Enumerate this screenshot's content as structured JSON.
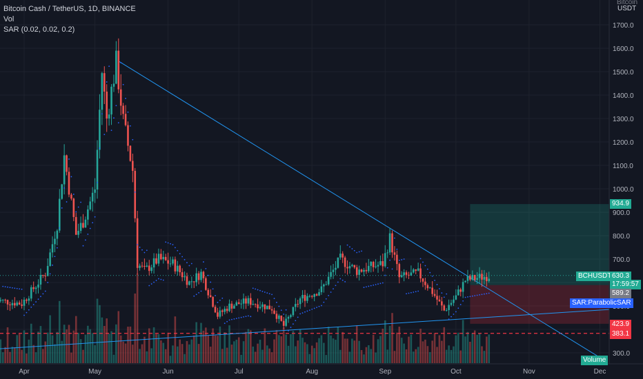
{
  "header": {
    "symbol_line": "Bitcoin Cash / TetherUS, 1D, BINANCE",
    "indicator_vol": "Vol",
    "indicator_sar": "SAR (0.02, 0.02, 0.2)"
  },
  "axis": {
    "currency_top": "Bitcoin",
    "currency": "USDT"
  },
  "labels": {
    "take_profit": "934.9",
    "symbol": "BCHUSDT",
    "last_price": "630.3",
    "countdown": "17:59:57",
    "entry": "589.2",
    "sar_tag": "SAR:ParabolicSAR",
    "stop_loss": "423.9",
    "support": "383.1",
    "volume_tag": "Volume"
  },
  "colors": {
    "background": "#131722",
    "up": "#26a69a",
    "down": "#ef5350",
    "trendline": "#2196f3",
    "sar_dots": "#2962ff",
    "support_line": "#f23645"
  },
  "chart_data": {
    "type": "candlestick",
    "ylim": [
      280,
      1790
    ],
    "y_ticks": [
      300,
      400,
      500,
      600,
      700,
      800,
      900,
      1000,
      1100,
      1200,
      1300,
      1400,
      1500,
      1600,
      1700
    ],
    "x_ticks": [
      "Apr",
      "May",
      "Jun",
      "Jul",
      "Aug",
      "Sep",
      "Oct",
      "Nov",
      "Dec"
    ],
    "price_path": [
      {
        "date": "2021-03-20",
        "price": 525
      },
      {
        "date": "2021-03-31",
        "price": 510
      },
      {
        "date": "2021-04-10",
        "price": 640
      },
      {
        "date": "2021-04-15",
        "price": 850
      },
      {
        "date": "2021-04-18",
        "price": 1140
      },
      {
        "date": "2021-04-23",
        "price": 805
      },
      {
        "date": "2021-04-26",
        "price": 860
      },
      {
        "date": "2021-05-01",
        "price": 1000
      },
      {
        "date": "2021-05-04",
        "price": 1500
      },
      {
        "date": "2021-05-06",
        "price": 1300
      },
      {
        "date": "2021-05-10",
        "price": 1540
      },
      {
        "date": "2021-05-13",
        "price": 1290
      },
      {
        "date": "2021-05-17",
        "price": 1080
      },
      {
        "date": "2021-05-19",
        "price": 680
      },
      {
        "date": "2021-05-22",
        "price": 650
      },
      {
        "date": "2021-05-28",
        "price": 700
      },
      {
        "date": "2021-06-03",
        "price": 680
      },
      {
        "date": "2021-06-10",
        "price": 600
      },
      {
        "date": "2021-06-15",
        "price": 640
      },
      {
        "date": "2021-06-22",
        "price": 460
      },
      {
        "date": "2021-06-27",
        "price": 500
      },
      {
        "date": "2021-07-05",
        "price": 520
      },
      {
        "date": "2021-07-15",
        "price": 490
      },
      {
        "date": "2021-07-20",
        "price": 415
      },
      {
        "date": "2021-07-27",
        "price": 530
      },
      {
        "date": "2021-08-05",
        "price": 570
      },
      {
        "date": "2021-08-13",
        "price": 700
      },
      {
        "date": "2021-08-20",
        "price": 650
      },
      {
        "date": "2021-08-31",
        "price": 680
      },
      {
        "date": "2021-09-03",
        "price": 790
      },
      {
        "date": "2021-09-07",
        "price": 620
      },
      {
        "date": "2021-09-15",
        "price": 640
      },
      {
        "date": "2021-09-21",
        "price": 560
      },
      {
        "date": "2021-09-26",
        "price": 480
      },
      {
        "date": "2021-10-01",
        "price": 540
      },
      {
        "date": "2021-10-05",
        "price": 610
      },
      {
        "date": "2021-10-10",
        "price": 620
      },
      {
        "date": "2021-10-15",
        "price": 630
      }
    ],
    "levels": {
      "take_profit": 934.9,
      "last_price": 630.3,
      "entry": 589.2,
      "stop_loss": 423.9,
      "support": 383.1
    },
    "trendline_down": [
      {
        "date": "2021-05-11",
        "price": 1545
      },
      {
        "date": "2021-12-01",
        "price": 280
      }
    ],
    "trendline_up": [
      {
        "date": "2021-03-20",
        "price": 335
      },
      {
        "date": "2021-12-31",
        "price": 485
      }
    ]
  }
}
